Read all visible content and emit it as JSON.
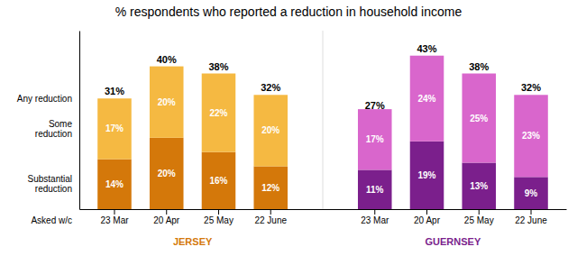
{
  "chart_data": {
    "type": "bar",
    "stacked": true,
    "data_labels": true,
    "tick_labels": "x",
    "grid": false,
    "title": "% respondents who reported a reduction in household income",
    "xlabel": "Asked w/c",
    "ylim": [
      0,
      50
    ],
    "yticks": [],
    "groups": [
      {
        "name": "JERSEY",
        "color": "#D4780A",
        "categories": [
          "23 Mar",
          "20 Apr",
          "25 May",
          "22 June"
        ]
      },
      {
        "name": "GUERNSEY",
        "color": "#7B1F8C",
        "categories": [
          "23 Mar",
          "20 Apr",
          "25 May",
          "22 June"
        ]
      }
    ],
    "series": [
      {
        "name": "Substantial\nreduction",
        "values": [
          14,
          20,
          16,
          12,
          11,
          19,
          13,
          9
        ],
        "value_labels": [
          "14%",
          "20%",
          "16%",
          "12%",
          "11%",
          "19%",
          "13%",
          "9%"
        ],
        "colors": [
          "#D4780A",
          "#D4780A",
          "#D4780A",
          "#D4780A",
          "#7B1F8C",
          "#7B1F8C",
          "#7B1F8C",
          "#7B1F8C"
        ]
      },
      {
        "name": "Some\nreduction",
        "values": [
          17,
          20,
          22,
          20,
          17,
          24,
          25,
          23
        ],
        "value_labels": [
          "17%",
          "20%",
          "22%",
          "20%",
          "17%",
          "24%",
          "25%",
          "23%"
        ],
        "colors": [
          "#F5B942",
          "#F5B942",
          "#F5B942",
          "#F5B942",
          "#D966CC",
          "#D966CC",
          "#D966CC",
          "#D966CC"
        ]
      }
    ],
    "totals": {
      "name": "Any reduction",
      "values": [
        31,
        40,
        38,
        32,
        27,
        43,
        38,
        32
      ],
      "value_labels": [
        "31%",
        "40%",
        "38%",
        "32%",
        "27%",
        "43%",
        "38%",
        "32%"
      ]
    }
  }
}
